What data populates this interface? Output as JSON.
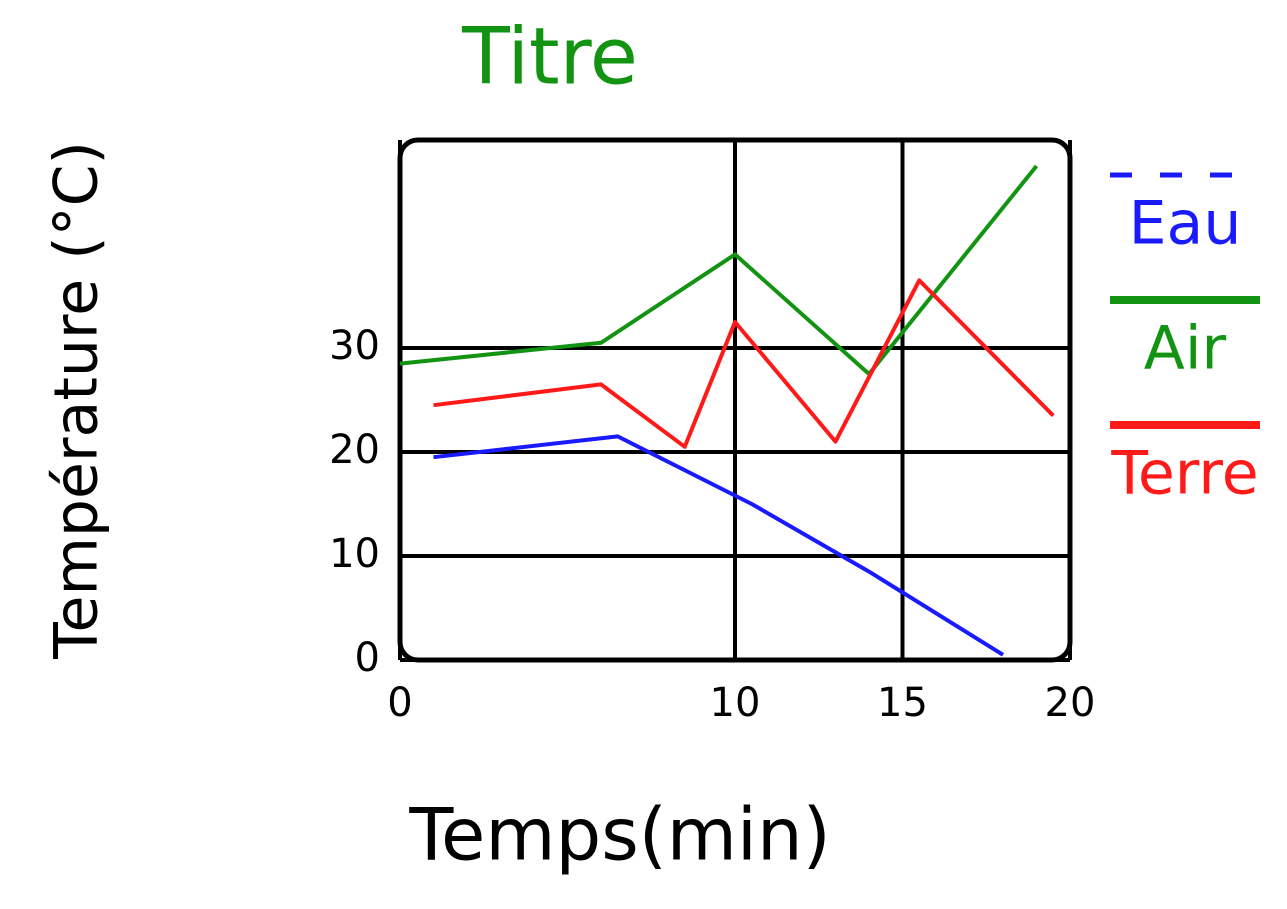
{
  "chart_data": {
    "type": "line",
    "title": "Titre",
    "x_label": "Temps(min)",
    "y_label": "Température (°C)",
    "xlim": [
      0,
      20
    ],
    "xticks": [
      0,
      10,
      15,
      20
    ],
    "ylim": [
      0,
      50
    ],
    "yticks": [
      0,
      10,
      20,
      30
    ],
    "grid": true,
    "legend": "right",
    "series": [
      {
        "name": "Eau",
        "color": "#1a1aff",
        "x": [
          1,
          6.5,
          10.5,
          14,
          18
        ],
        "values": [
          19.5,
          21.5,
          15,
          8.5,
          0.5
        ]
      },
      {
        "name": "Air",
        "color": "#129412",
        "x": [
          0,
          6,
          10,
          14,
          19
        ],
        "values": [
          28.5,
          30.5,
          39,
          27.5,
          47.5
        ]
      },
      {
        "name": "Terre",
        "color": "#ff1a1a",
        "x": [
          1,
          6,
          8.5,
          10,
          13,
          15.5,
          19.5
        ],
        "values": [
          24.5,
          26.5,
          20.5,
          32.5,
          21,
          36.5,
          23.5
        ]
      }
    ]
  }
}
